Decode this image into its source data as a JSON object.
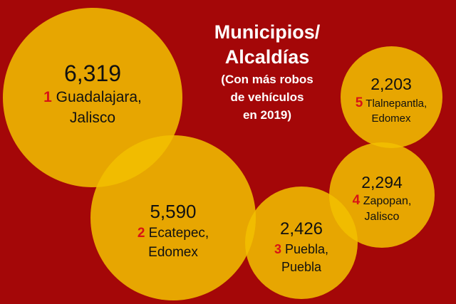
{
  "title": {
    "line1": "Municipios/",
    "line2": "Alcaldías",
    "sub1": "(Con más robos",
    "sub2": "de vehículos",
    "sub3": "en 2019)"
  },
  "items": [
    {
      "rank": "1",
      "value": "6,319",
      "name": "Guadalajara,",
      "state": "Jalisco"
    },
    {
      "rank": "2",
      "value": "5,590",
      "name": "Ecatepec,",
      "state": "Edomex"
    },
    {
      "rank": "3",
      "value": "2,426",
      "name": "Puebla,",
      "state": "Puebla"
    },
    {
      "rank": "4",
      "value": "2,294",
      "name": "Zapopan,",
      "state": "Jalisco"
    },
    {
      "rank": "5",
      "value": "2,203",
      "name": "Tlalnepantla,",
      "state": "Edomex"
    }
  ]
}
